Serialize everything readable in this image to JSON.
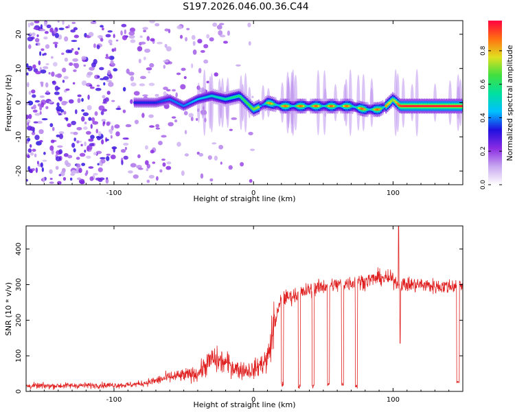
{
  "title": "S197.2026.046.00.36.C44",
  "chart_data": [
    {
      "type": "heatmap",
      "name": "spectrogram",
      "xlabel": "Height of straight line (km)",
      "ylabel": "Frequency (Hz)",
      "xlim": [
        -163,
        150
      ],
      "ylim": [
        -24,
        24
      ],
      "xticks": [
        -100,
        0,
        100
      ],
      "yticks": [
        -20,
        -10,
        0,
        10,
        20
      ],
      "colorbar": {
        "label": "Normalized spectral amplitude",
        "ticks": [
          "0.0",
          "0.2",
          "0.4",
          "0.6",
          "0.8"
        ],
        "tick_values": [
          0,
          0.2,
          0.4,
          0.6,
          0.8
        ],
        "range": [
          0,
          0.98
        ],
        "colors": [
          "#ffffff",
          "#c8a8f0",
          "#8a2be2",
          "#2010e0",
          "#00c0ff",
          "#00e0a0",
          "#40e040",
          "#e0e020",
          "#ff7010",
          "#ff0040"
        ]
      },
      "ridge": {
        "x": [
          -85,
          -70,
          -60,
          -50,
          -40,
          -30,
          -20,
          -10,
          0,
          5,
          10,
          20,
          30,
          40,
          50,
          60,
          70,
          80,
          85,
          90,
          95,
          100,
          105,
          110,
          120,
          130,
          140,
          150
        ],
        "freq": [
          0,
          0,
          1,
          -1,
          1,
          2,
          1,
          2,
          -2,
          -1,
          0,
          -1,
          -1,
          -1,
          -1,
          -1,
          -1,
          -2,
          -2,
          -2,
          -1,
          1,
          -1,
          -1,
          -1,
          -1,
          -1,
          -1
        ],
        "amp": [
          0.35,
          0.35,
          0.4,
          0.4,
          0.45,
          0.5,
          0.55,
          0.6,
          0.7,
          0.75,
          0.85,
          0.9,
          0.9,
          0.92,
          0.92,
          0.92,
          0.9,
          0.92,
          0.92,
          0.9,
          0.85,
          0.7,
          0.95,
          0.97,
          0.97,
          0.97,
          0.97,
          0.97
        ]
      }
    },
    {
      "type": "line",
      "name": "snr",
      "xlabel": "Height of straight line (km)",
      "ylabel": "SNR (10 * v/v)",
      "xlim": [
        -163,
        150
      ],
      "ylim": [
        0,
        465
      ],
      "xticks": [
        -100,
        0,
        100
      ],
      "yticks": [
        0,
        100,
        200,
        300,
        400
      ],
      "color": "#e02020",
      "envelope": {
        "x": [
          -163,
          -90,
          -80,
          -70,
          -60,
          -50,
          -40,
          -35,
          -30,
          -20,
          -10,
          0,
          10,
          15,
          20,
          25,
          30,
          40,
          50,
          60,
          70,
          80,
          90,
          100,
          105,
          110,
          120,
          130,
          140,
          150
        ],
        "y": [
          15,
          18,
          22,
          30,
          40,
          45,
          50,
          70,
          90,
          80,
          60,
          60,
          90,
          190,
          260,
          265,
          270,
          285,
          295,
          300,
          305,
          310,
          320,
          315,
          300,
          300,
          300,
          295,
          295,
          300
        ]
      },
      "dropouts": [
        {
          "x0": 20,
          "x1": 21.5,
          "y": 20
        },
        {
          "x0": 32,
          "x1": 33.5,
          "y": 15
        },
        {
          "x0": 42,
          "x1": 43.5,
          "y": 15
        },
        {
          "x0": 53,
          "x1": 54.5,
          "y": 20
        },
        {
          "x0": 63,
          "x1": 64.5,
          "y": 20
        },
        {
          "x0": 73,
          "x1": 74.5,
          "y": 15
        },
        {
          "x0": 145.5,
          "x1": 147.5,
          "y": 25
        }
      ],
      "spike": {
        "x": 104,
        "y": 465
      },
      "dip": {
        "x": 105,
        "y": 135
      }
    }
  ]
}
